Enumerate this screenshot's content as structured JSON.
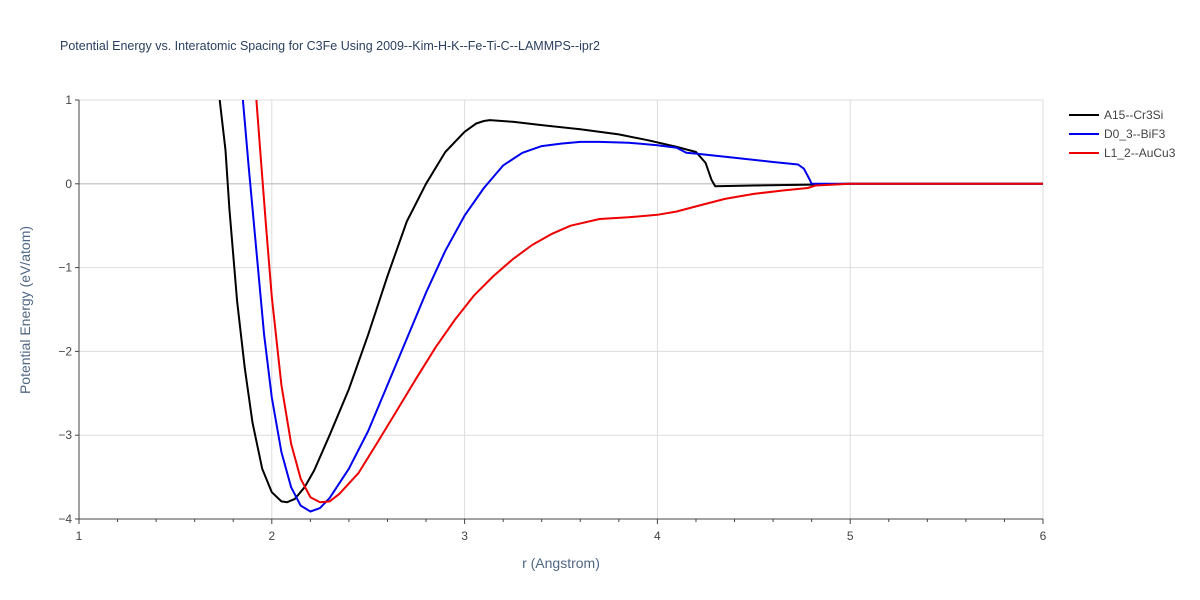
{
  "chart_data": {
    "type": "line",
    "title": "Potential Energy vs. Interatomic Spacing for C3Fe Using 2009--Kim-H-K--Fe-Ti-C--LAMMPS--ipr2",
    "xlabel": "r (Angstrom)",
    "ylabel": "Potential Energy (eV/atom)",
    "xlim": [
      1,
      6
    ],
    "ylim": [
      -4,
      1
    ],
    "x_ticks": [
      1,
      2,
      3,
      4,
      5,
      6
    ],
    "y_ticks": [
      1,
      0,
      -1,
      -2,
      -3,
      -4
    ],
    "x_tick_labels": [
      "1",
      "2",
      "3",
      "4",
      "5",
      "6"
    ],
    "y_tick_labels": [
      "1",
      "0",
      "−1",
      "−2",
      "−3",
      "−4"
    ],
    "grid": true,
    "legend_position": "top-right",
    "series": [
      {
        "name": "A15--Cr3Si",
        "color": "#000000",
        "points": [
          [
            1.73,
            1.0
          ],
          [
            1.76,
            0.4
          ],
          [
            1.78,
            -0.3
          ],
          [
            1.82,
            -1.4
          ],
          [
            1.86,
            -2.2
          ],
          [
            1.9,
            -2.85
          ],
          [
            1.95,
            -3.4
          ],
          [
            2.0,
            -3.68
          ],
          [
            2.05,
            -3.79
          ],
          [
            2.08,
            -3.8
          ],
          [
            2.12,
            -3.76
          ],
          [
            2.17,
            -3.62
          ],
          [
            2.22,
            -3.42
          ],
          [
            2.3,
            -3.0
          ],
          [
            2.4,
            -2.45
          ],
          [
            2.5,
            -1.8
          ],
          [
            2.6,
            -1.1
          ],
          [
            2.7,
            -0.45
          ],
          [
            2.8,
            0.0
          ],
          [
            2.9,
            0.38
          ],
          [
            3.0,
            0.62
          ],
          [
            3.06,
            0.72
          ],
          [
            3.1,
            0.75
          ],
          [
            3.13,
            0.76
          ],
          [
            3.25,
            0.74
          ],
          [
            3.4,
            0.7
          ],
          [
            3.6,
            0.65
          ],
          [
            3.8,
            0.59
          ],
          [
            3.95,
            0.52
          ],
          [
            4.1,
            0.44
          ],
          [
            4.2,
            0.38
          ],
          [
            4.25,
            0.25
          ],
          [
            4.28,
            0.05
          ],
          [
            4.3,
            -0.03
          ],
          [
            4.5,
            -0.02
          ],
          [
            4.8,
            -0.01
          ],
          [
            5.0,
            0.0
          ],
          [
            6.0,
            0.0
          ]
        ]
      },
      {
        "name": "D0_3--BiF3",
        "color": "#0000ee",
        "points": [
          [
            1.85,
            1.0
          ],
          [
            1.88,
            0.2
          ],
          [
            1.92,
            -0.8
          ],
          [
            1.96,
            -1.8
          ],
          [
            2.0,
            -2.55
          ],
          [
            2.05,
            -3.2
          ],
          [
            2.1,
            -3.62
          ],
          [
            2.15,
            -3.84
          ],
          [
            2.2,
            -3.91
          ],
          [
            2.25,
            -3.87
          ],
          [
            2.3,
            -3.75
          ],
          [
            2.4,
            -3.4
          ],
          [
            2.5,
            -2.95
          ],
          [
            2.6,
            -2.4
          ],
          [
            2.7,
            -1.85
          ],
          [
            2.8,
            -1.3
          ],
          [
            2.9,
            -0.8
          ],
          [
            3.0,
            -0.38
          ],
          [
            3.1,
            -0.05
          ],
          [
            3.2,
            0.22
          ],
          [
            3.3,
            0.37
          ],
          [
            3.4,
            0.45
          ],
          [
            3.5,
            0.48
          ],
          [
            3.6,
            0.5
          ],
          [
            3.7,
            0.5
          ],
          [
            3.85,
            0.49
          ],
          [
            4.0,
            0.46
          ],
          [
            4.1,
            0.43
          ],
          [
            4.15,
            0.37
          ],
          [
            4.2,
            0.36
          ],
          [
            4.4,
            0.31
          ],
          [
            4.6,
            0.26
          ],
          [
            4.73,
            0.23
          ],
          [
            4.76,
            0.18
          ],
          [
            4.79,
            0.05
          ],
          [
            4.8,
            0.0
          ],
          [
            5.0,
            0.0
          ],
          [
            6.0,
            0.0
          ]
        ]
      },
      {
        "name": "L1_2--AuCu3",
        "color": "#ee0000",
        "points": [
          [
            1.92,
            1.0
          ],
          [
            1.94,
            0.4
          ],
          [
            1.97,
            -0.5
          ],
          [
            2.0,
            -1.35
          ],
          [
            2.05,
            -2.4
          ],
          [
            2.1,
            -3.1
          ],
          [
            2.15,
            -3.52
          ],
          [
            2.2,
            -3.74
          ],
          [
            2.25,
            -3.8
          ],
          [
            2.3,
            -3.79
          ],
          [
            2.35,
            -3.7
          ],
          [
            2.45,
            -3.45
          ],
          [
            2.55,
            -3.08
          ],
          [
            2.65,
            -2.7
          ],
          [
            2.75,
            -2.32
          ],
          [
            2.85,
            -1.95
          ],
          [
            2.95,
            -1.62
          ],
          [
            3.05,
            -1.33
          ],
          [
            3.15,
            -1.1
          ],
          [
            3.25,
            -0.9
          ],
          [
            3.35,
            -0.73
          ],
          [
            3.45,
            -0.6
          ],
          [
            3.55,
            -0.5
          ],
          [
            3.7,
            -0.42
          ],
          [
            3.85,
            -0.4
          ],
          [
            4.0,
            -0.37
          ],
          [
            4.1,
            -0.33
          ],
          [
            4.2,
            -0.27
          ],
          [
            4.35,
            -0.18
          ],
          [
            4.5,
            -0.12
          ],
          [
            4.65,
            -0.08
          ],
          [
            4.78,
            -0.05
          ],
          [
            4.82,
            -0.02
          ],
          [
            5.0,
            0.0
          ],
          [
            6.0,
            0.0
          ]
        ]
      }
    ]
  }
}
